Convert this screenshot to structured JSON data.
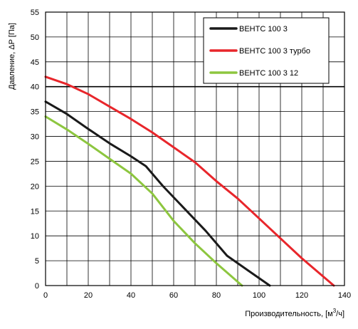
{
  "chart_data": {
    "type": "line",
    "title": "",
    "xlabel": "Производительность, [м",
    "xlabel_sup": "3",
    "xlabel_tail": "/ч]",
    "ylabel": "Давление, ΔP [Па]",
    "xlim": [
      0,
      140
    ],
    "ylim": [
      0,
      55
    ],
    "x_ticks": [
      0,
      20,
      40,
      60,
      80,
      100,
      120,
      140
    ],
    "y_ticks": [
      0,
      5,
      10,
      15,
      20,
      25,
      30,
      35,
      40,
      45,
      50,
      55
    ],
    "grid": true,
    "minor_grid_x_step": 10,
    "major_grid_y_step": 5,
    "emphasized_y_line": 40,
    "legend_placement": "top-right",
    "series": [
      {
        "name": "ВЕНТС 100 3",
        "color": "#1a1a1a",
        "points": [
          [
            0,
            37
          ],
          [
            10,
            34.5
          ],
          [
            20,
            31.5
          ],
          [
            30,
            28.6
          ],
          [
            40,
            26
          ],
          [
            47,
            24
          ],
          [
            55,
            20
          ],
          [
            65,
            15.5
          ],
          [
            75,
            11
          ],
          [
            85,
            6
          ],
          [
            95,
            3
          ],
          [
            105,
            0
          ]
        ]
      },
      {
        "name": "ВЕНТС 100 3 турбо",
        "color": "#e8262b",
        "points": [
          [
            0,
            42
          ],
          [
            10,
            40.5
          ],
          [
            20,
            38.5
          ],
          [
            30,
            36
          ],
          [
            40,
            33.5
          ],
          [
            50,
            30.8
          ],
          [
            60,
            27.8
          ],
          [
            70,
            24.8
          ],
          [
            80,
            21
          ],
          [
            90,
            17.5
          ],
          [
            100,
            13.5
          ],
          [
            110,
            9.5
          ],
          [
            120,
            5.5
          ],
          [
            135,
            0
          ]
        ]
      },
      {
        "name": "ВЕНТС 100 3 12",
        "color": "#8dc63f",
        "points": [
          [
            0,
            34
          ],
          [
            10,
            31.4
          ],
          [
            20,
            28.5
          ],
          [
            30,
            25.5
          ],
          [
            40,
            22.5
          ],
          [
            50,
            18.5
          ],
          [
            60,
            13
          ],
          [
            70,
            8.5
          ],
          [
            80,
            4.5
          ],
          [
            92,
            0
          ]
        ]
      }
    ]
  }
}
